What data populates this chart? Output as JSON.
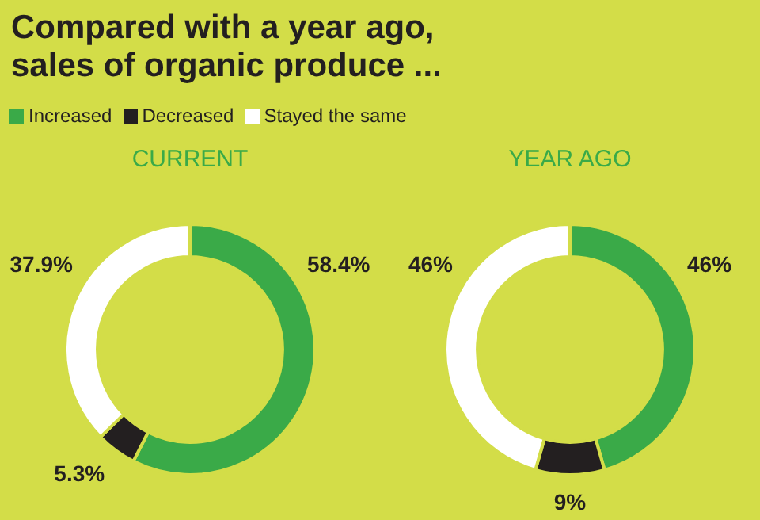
{
  "chart_data": [
    {
      "type": "donut",
      "title": "Compared with a year ago,\nsales of organic produce ...",
      "subtitle": "CURRENT",
      "categories": [
        "Increased",
        "Decreased",
        "Stayed the same"
      ],
      "values": [
        58.4,
        5.3,
        37.9
      ],
      "colors": [
        "#3aaa48",
        "#231f20",
        "#ffffff"
      ],
      "value_labels": [
        "58.4%",
        "5.3%",
        "37.9%"
      ],
      "legend": "top"
    },
    {
      "type": "donut",
      "subtitle": "YEAR AGO",
      "categories": [
        null,
        null,
        null
      ],
      "values": [
        46,
        9,
        46
      ],
      "colors": [
        "#3aaa48",
        "#231f20",
        "#ffffff"
      ],
      "value_labels": [
        "46%",
        "9%",
        "46%"
      ]
    }
  ]
}
